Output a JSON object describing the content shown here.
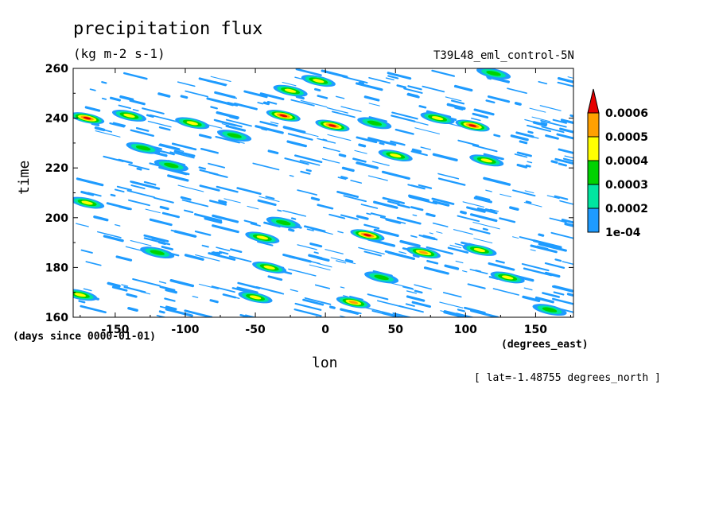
{
  "chart_data": {
    "type": "heatmap",
    "title": "precipitation flux",
    "units": "(kg m-2 s-1)",
    "run_label": "T39L48_eml_control-5N",
    "xlabel": "lon",
    "ylabel": "time",
    "x_units": "(degrees_east)",
    "y_units": "(days since 0000-01-01)",
    "annotation": "[ lat=-1.48755 degrees_north ]",
    "xlim": [
      -180,
      177
    ],
    "ylim": [
      160,
      260
    ],
    "x_ticks": [
      -150,
      -100,
      -50,
      0,
      50,
      100,
      150
    ],
    "x_tick_labels": [
      "-150",
      "-100",
      "-50",
      "0",
      "50",
      "100",
      "150"
    ],
    "y_ticks": [
      160,
      180,
      200,
      220,
      240,
      260
    ],
    "y_tick_labels": [
      "160",
      "180",
      "200",
      "220",
      "240",
      "260"
    ],
    "levels": [
      0.0001,
      0.0002,
      0.0003,
      0.0004,
      0.0005,
      0.0006
    ],
    "level_labels": [
      "1e-04",
      "0.0002",
      "0.0003",
      "0.0004",
      "0.0005",
      "0.0006"
    ],
    "colors": [
      "#1e9bff",
      "#00e6a0",
      "#00d200",
      "#ffff00",
      "#ffa000",
      "#e60000"
    ],
    "grid": false,
    "legend": "right colorbar",
    "features": [
      {
        "lon": -170,
        "time": 240,
        "peak": 0.0006
      },
      {
        "lon": -140,
        "time": 241,
        "peak": 0.0004
      },
      {
        "lon": -130,
        "time": 228,
        "peak": 0.0003
      },
      {
        "lon": -95,
        "time": 238,
        "peak": 0.0004
      },
      {
        "lon": -65,
        "time": 233,
        "peak": 0.0003
      },
      {
        "lon": -30,
        "time": 241,
        "peak": 0.0006
      },
      {
        "lon": 5,
        "time": 237,
        "peak": 0.0006
      },
      {
        "lon": 35,
        "time": 238,
        "peak": 0.0003
      },
      {
        "lon": 50,
        "time": 225,
        "peak": 0.0004
      },
      {
        "lon": 80,
        "time": 240,
        "peak": 0.0004
      },
      {
        "lon": 105,
        "time": 237,
        "peak": 0.0006
      },
      {
        "lon": 115,
        "time": 223,
        "peak": 0.0004
      },
      {
        "lon": -25,
        "time": 251,
        "peak": 0.0004
      },
      {
        "lon": -5,
        "time": 255,
        "peak": 0.0004
      },
      {
        "lon": 120,
        "time": 258,
        "peak": 0.0003
      },
      {
        "lon": -170,
        "time": 206,
        "peak": 0.0004
      },
      {
        "lon": -110,
        "time": 221,
        "peak": 0.0003
      },
      {
        "lon": -30,
        "time": 198,
        "peak": 0.0003
      },
      {
        "lon": 30,
        "time": 193,
        "peak": 0.0006
      },
      {
        "lon": 70,
        "time": 186,
        "peak": 0.0005
      },
      {
        "lon": 110,
        "time": 187,
        "peak": 0.0004
      },
      {
        "lon": 130,
        "time": 176,
        "peak": 0.0004
      },
      {
        "lon": -40,
        "time": 180,
        "peak": 0.0004
      },
      {
        "lon": -45,
        "time": 192,
        "peak": 0.0004
      },
      {
        "lon": -50,
        "time": 168,
        "peak": 0.0004
      },
      {
        "lon": 20,
        "time": 166,
        "peak": 0.0005
      },
      {
        "lon": 40,
        "time": 176,
        "peak": 0.0003
      },
      {
        "lon": -175,
        "time": 169,
        "peak": 0.0004
      },
      {
        "lon": 160,
        "time": 163,
        "peak": 0.0003
      },
      {
        "lon": -120,
        "time": 186,
        "peak": 0.0003
      }
    ]
  }
}
